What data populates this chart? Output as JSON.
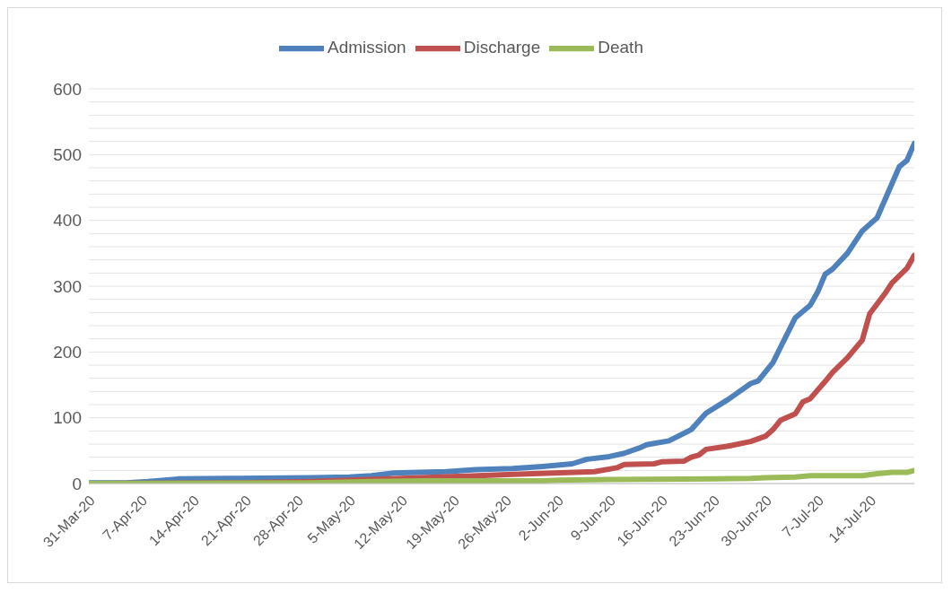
{
  "chart_data": {
    "type": "line",
    "legend": "top",
    "grid": "y",
    "marker": "none",
    "line_style": "solid",
    "xlim": [
      "--03-31",
      "--07-20"
    ],
    "xticks": [
      {
        "value": "--03-31",
        "label": "31-Mar-20"
      },
      {
        "value": "--04-07",
        "label": "7-Apr-20"
      },
      {
        "value": "--04-14",
        "label": "14-Apr-20"
      },
      {
        "value": "--04-21",
        "label": "21-Apr-20"
      },
      {
        "value": "--04-28",
        "label": "28-Apr-20"
      },
      {
        "value": "--05-05",
        "label": "5-May-20"
      },
      {
        "value": "--05-12",
        "label": "12-May-20"
      },
      {
        "value": "--05-19",
        "label": "19-May-20"
      },
      {
        "value": "--05-26",
        "label": "26-May-20"
      },
      {
        "value": "--06-02",
        "label": "2-Jun-20"
      },
      {
        "value": "--06-09",
        "label": "9-Jun-20"
      },
      {
        "value": "--06-16",
        "label": "16-Jun-20"
      },
      {
        "value": "--06-23",
        "label": "23-Jun-20"
      },
      {
        "value": "--06-30",
        "label": "30-Jun-20"
      },
      {
        "value": "--07-07",
        "label": "7-Jul-20"
      },
      {
        "value": "--07-14",
        "label": "14-Jul-20"
      }
    ],
    "ylim": [
      0,
      600
    ],
    "yticks": [
      0,
      {
        "value": 20,
        "label": null
      },
      {
        "value": 40,
        "label": null
      },
      {
        "value": 60,
        "label": null
      },
      {
        "value": 80,
        "label": null
      },
      100,
      {
        "value": 120,
        "label": null
      },
      {
        "value": 140,
        "label": null
      },
      {
        "value": 160,
        "label": null
      },
      {
        "value": 180,
        "label": null
      },
      200,
      {
        "value": 220,
        "label": null
      },
      {
        "value": 240,
        "label": null
      },
      {
        "value": 260,
        "label": null
      },
      {
        "value": 280,
        "label": null
      },
      300,
      {
        "value": 320,
        "label": null
      },
      {
        "value": 340,
        "label": null
      },
      {
        "value": 360,
        "label": null
      },
      {
        "value": 380,
        "label": null
      },
      400,
      {
        "value": 420,
        "label": null
      },
      {
        "value": 440,
        "label": null
      },
      {
        "value": 460,
        "label": null
      },
      {
        "value": 480,
        "label": null
      },
      500,
      {
        "value": 520,
        "label": null
      },
      {
        "value": 540,
        "label": null
      },
      {
        "value": 560,
        "label": null
      },
      {
        "value": 580,
        "label": null
      },
      600
    ],
    "series": [
      {
        "name": "Admission",
        "color": "#4f81bd",
        "x": [
          "--03-31",
          "--04-05",
          "--04-08",
          "--04-12",
          "--04-20",
          "--04-30",
          "--05-05",
          "--05-08",
          "--05-11",
          "--05-18",
          "--05-22",
          "--05-27",
          "--05-31",
          "--06-04",
          "--06-06",
          "--06-09",
          "--06-11",
          "--06-13",
          "--06-14",
          "--06-17",
          "--06-20",
          "--06-22",
          "--06-25",
          "--06-28",
          "--06-29",
          "--07-01",
          "--07-02",
          "--07-04",
          "--07-06",
          "--07-07",
          "--07-08",
          "--07-09",
          "--07-11",
          "--07-13",
          "--07-15",
          "--07-18",
          "--07-19",
          "--07-20"
        ],
        "values": [
          1,
          1,
          3,
          7,
          8,
          9,
          10,
          12,
          16,
          18,
          21,
          23,
          26,
          30,
          37,
          41,
          46,
          54,
          59,
          65,
          82,
          107,
          128,
          152,
          156,
          184,
          207,
          252,
          271,
          291,
          318,
          326,
          350,
          384,
          404,
          482,
          491,
          517
        ]
      },
      {
        "name": "Discharge",
        "color": "#c0504d",
        "x": [
          "--03-31",
          "--04-20",
          "--04-30",
          "--05-12",
          "--05-20",
          "--05-27",
          "--06-07",
          "--06-10",
          "--06-11",
          "--06-15",
          "--06-16",
          "--06-19",
          "--06-20",
          "--06-21",
          "--06-22",
          "--06-25",
          "--06-28",
          "--06-30",
          "--07-01",
          "--07-02",
          "--07-04",
          "--07-05",
          "--07-06",
          "--07-08",
          "--07-09",
          "--07-11",
          "--07-13",
          "--07-14",
          "--07-16",
          "--07-17",
          "--07-19",
          "--07-20"
        ],
        "values": [
          0,
          1,
          3,
          8,
          11,
          14,
          18,
          24,
          29,
          30,
          33,
          34,
          40,
          43,
          52,
          57,
          64,
          72,
          82,
          96,
          106,
          124,
          129,
          155,
          169,
          191,
          218,
          258,
          288,
          305,
          327,
          347
        ]
      },
      {
        "name": "Death",
        "color": "#9bbb59",
        "x": [
          "--03-31",
          "--04-30",
          "--05-08",
          "--05-15",
          "--05-31",
          "--06-02",
          "--06-09",
          "--06-23",
          "--06-28",
          "--06-30",
          "--07-04",
          "--07-06",
          "--07-13",
          "--07-15",
          "--07-17",
          "--07-19",
          "--07-20"
        ],
        "values": [
          0,
          1,
          3,
          4,
          4,
          5,
          6,
          7,
          8,
          9,
          10,
          12,
          12,
          15,
          17,
          17,
          20
        ]
      }
    ]
  }
}
